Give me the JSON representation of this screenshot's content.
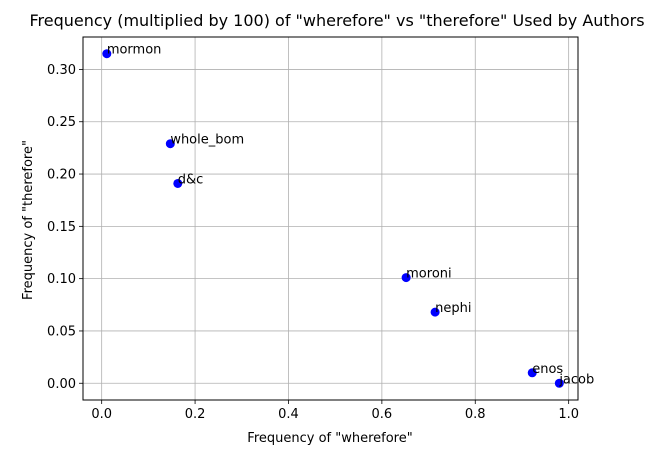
{
  "chart_data": {
    "type": "scatter",
    "title": "Frequency (multiplied by 100) of \"wherefore\" vs \"therefore\" Used by Authors",
    "xlabel": "Frequency of \"wherefore\"",
    "ylabel": "Frequency of \"therefore\"",
    "xlim": [
      -0.04,
      1.02
    ],
    "ylim": [
      -0.016,
      0.331
    ],
    "xticks": [
      0.0,
      0.2,
      0.4,
      0.6,
      0.8,
      1.0
    ],
    "xtick_labels": [
      "0.0",
      "0.2",
      "0.4",
      "0.6",
      "0.8",
      "1.0"
    ],
    "yticks": [
      0.0,
      0.05,
      0.1,
      0.15,
      0.2,
      0.25,
      0.3
    ],
    "ytick_labels": [
      "0.00",
      "0.05",
      "0.10",
      "0.15",
      "0.20",
      "0.25",
      "0.30"
    ],
    "grid": true,
    "point_color": "#0000ff",
    "points": [
      {
        "label": "mormon",
        "x": 0.011,
        "y": 0.315
      },
      {
        "label": "whole_bom",
        "x": 0.147,
        "y": 0.229
      },
      {
        "label": "d&c",
        "x": 0.163,
        "y": 0.191
      },
      {
        "label": "moroni",
        "x": 0.652,
        "y": 0.101
      },
      {
        "label": "nephi",
        "x": 0.714,
        "y": 0.068
      },
      {
        "label": "enos",
        "x": 0.922,
        "y": 0.01
      },
      {
        "label": "jacob",
        "x": 0.98,
        "y": 0.0
      }
    ]
  }
}
